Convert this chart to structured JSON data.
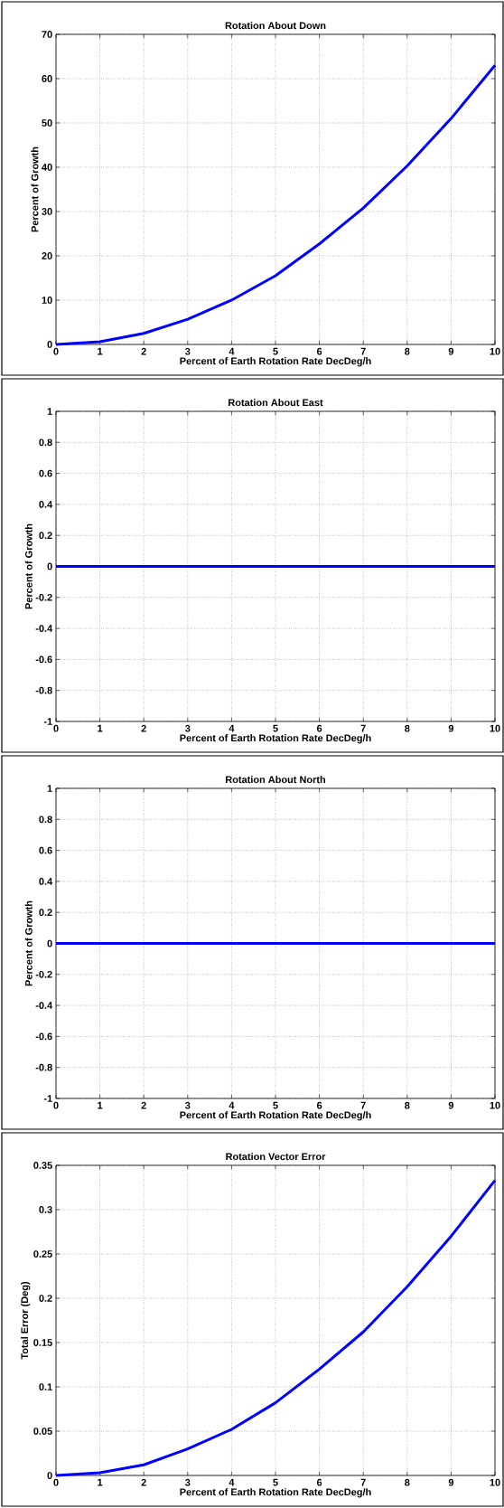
{
  "chart_data": [
    {
      "type": "line",
      "title": "Rotation About Down",
      "xlabel": "Percent of Earth Rotation Rate DecDeg/h",
      "ylabel": "Percent of Growth",
      "x": [
        0,
        1,
        2,
        3,
        4,
        5,
        6,
        7,
        8,
        9,
        10
      ],
      "values": [
        0,
        0.6,
        2.5,
        5.7,
        10,
        15.5,
        22.7,
        30.8,
        40.3,
        51,
        63
      ],
      "color": "#0000ff",
      "xlim": [
        0,
        10
      ],
      "ylim": [
        0,
        70
      ],
      "xticks": [
        0,
        1,
        2,
        3,
        4,
        5,
        6,
        7,
        8,
        9,
        10
      ],
      "yticks": [
        0,
        10,
        20,
        30,
        40,
        50,
        60,
        70
      ],
      "grid": true
    },
    {
      "type": "line",
      "title": "Rotation About East",
      "xlabel": "Percent of Earth Rotation Rate DecDeg/h",
      "ylabel": "Percent of Growth",
      "x": [
        0,
        1,
        2,
        3,
        4,
        5,
        6,
        7,
        8,
        9,
        10
      ],
      "values": [
        0,
        0,
        0,
        0,
        0,
        0,
        0,
        0,
        0,
        0,
        0
      ],
      "color": "#0000ff",
      "xlim": [
        0,
        10
      ],
      "ylim": [
        -1,
        1
      ],
      "xticks": [
        0,
        1,
        2,
        3,
        4,
        5,
        6,
        7,
        8,
        9,
        10
      ],
      "yticks": [
        -1,
        -0.8,
        -0.6,
        -0.4,
        -0.2,
        0,
        0.2,
        0.4,
        0.6,
        0.8,
        1
      ],
      "grid": true
    },
    {
      "type": "line",
      "title": "Rotation About North",
      "xlabel": "Percent of Earth Rotation Rate DecDeg/h",
      "ylabel": "Percent of Growth",
      "x": [
        0,
        1,
        2,
        3,
        4,
        5,
        6,
        7,
        8,
        9,
        10
      ],
      "values": [
        0,
        0,
        0,
        0,
        0,
        0,
        0,
        0,
        0,
        0,
        0
      ],
      "color": "#0000ff",
      "xlim": [
        0,
        10
      ],
      "ylim": [
        -1,
        1
      ],
      "xticks": [
        0,
        1,
        2,
        3,
        4,
        5,
        6,
        7,
        8,
        9,
        10
      ],
      "yticks": [
        -1,
        -0.8,
        -0.6,
        -0.4,
        -0.2,
        0,
        0.2,
        0.4,
        0.6,
        0.8,
        1
      ],
      "grid": true
    },
    {
      "type": "line",
      "title": "Rotation Vector Error",
      "xlabel": "Percent of Earth Rotation Rate DecDeg/h",
      "ylabel": "Total Error (Deg)",
      "x": [
        0,
        1,
        2,
        3,
        4,
        5,
        6,
        7,
        8,
        9,
        10
      ],
      "values": [
        0,
        0.003,
        0.012,
        0.03,
        0.052,
        0.082,
        0.12,
        0.162,
        0.213,
        0.27,
        0.333
      ],
      "color": "#0000ff",
      "xlim": [
        0,
        10
      ],
      "ylim": [
        0,
        0.35
      ],
      "xticks": [
        0,
        1,
        2,
        3,
        4,
        5,
        6,
        7,
        8,
        9,
        10
      ],
      "yticks": [
        0,
        0.05,
        0.1,
        0.15,
        0.2,
        0.25,
        0.3,
        0.35
      ],
      "grid": true
    }
  ]
}
